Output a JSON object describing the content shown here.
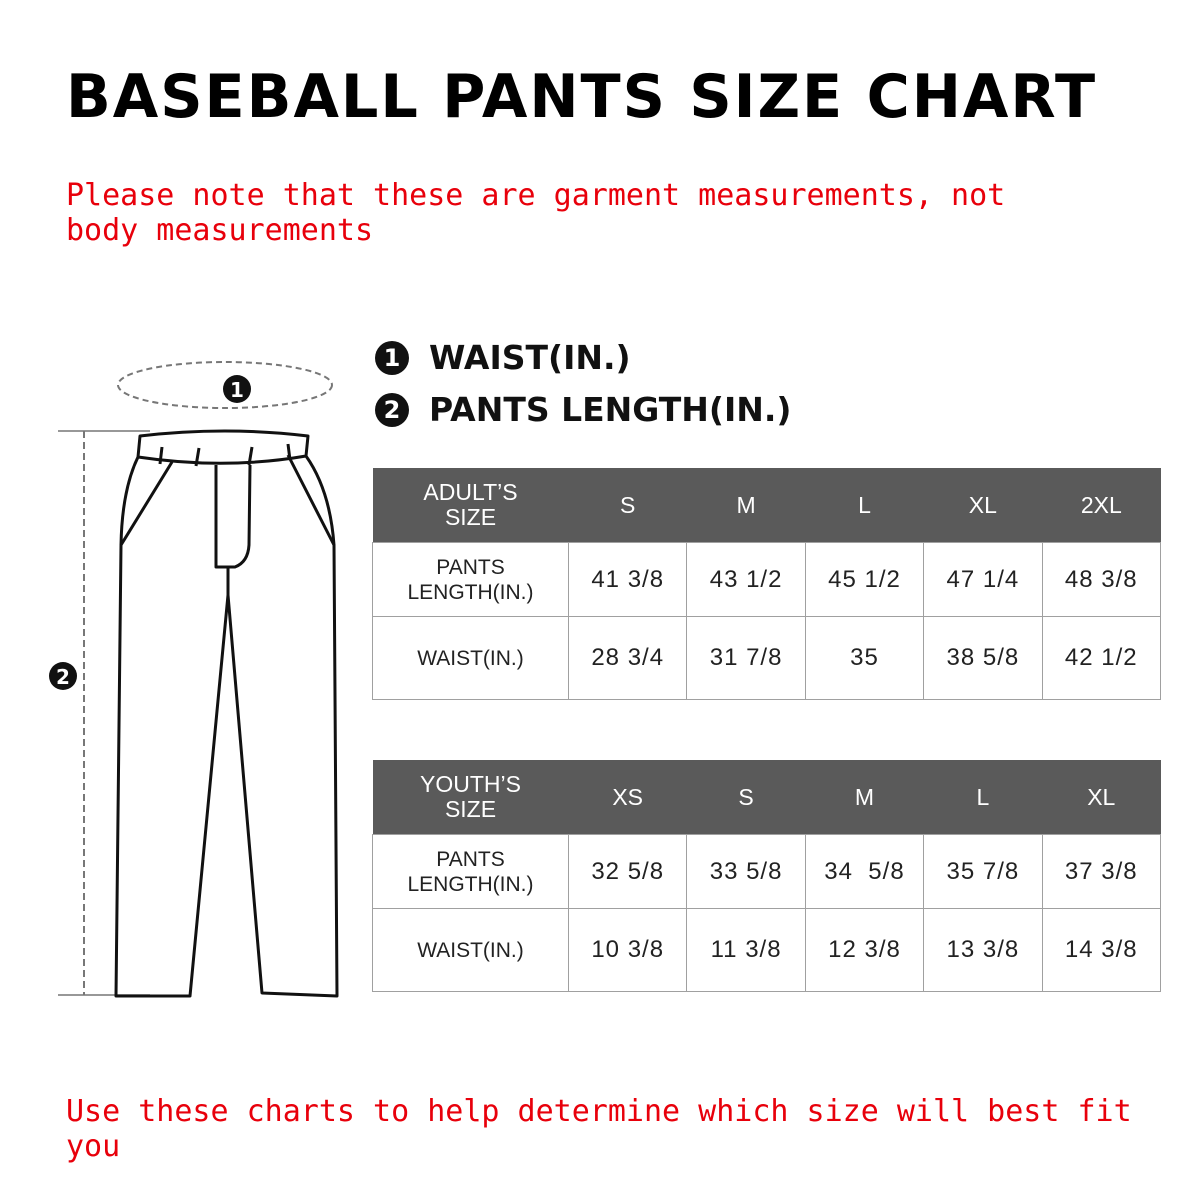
{
  "title": "BASEBALL PANTS SIZE CHART",
  "note": "Please note that these are garment measurements, not body measurements",
  "footer": "Use these charts to help determine which size will best fit you",
  "legend": [
    {
      "num": "1",
      "label": "WAIST(IN.)"
    },
    {
      "num": "2",
      "label": "PANTS LENGTH(IN.)"
    }
  ],
  "diagram": {
    "marker1": "1",
    "marker2": "2"
  },
  "adult": {
    "header": [
      "ADULT’S SIZE",
      "S",
      "M",
      "L",
      "XL",
      "2XL"
    ],
    "rows": [
      {
        "label": "PANTS LENGTH(IN.)",
        "values": [
          "41 3/8",
          "43 1/2",
          "45 1/2",
          "47 1/4",
          "48 3/8"
        ]
      },
      {
        "label": "WAIST(IN.)",
        "values": [
          "28 3/4",
          "31 7/8",
          "35",
          "38 5/8",
          "42 1/2"
        ]
      }
    ]
  },
  "youth": {
    "header": [
      "YOUTH’S SIZE",
      "XS",
      "S",
      "M",
      "L",
      "XL"
    ],
    "rows": [
      {
        "label": "PANTS LENGTH(IN.)",
        "values": [
          "32 5/8",
          "33 5/8",
          "34  5/8",
          "35 7/8",
          "37 3/8"
        ]
      },
      {
        "label": "WAIST(IN.)",
        "values": [
          "10 3/8",
          "11 3/8",
          "12 3/8",
          "13 3/8",
          "14 3/8"
        ]
      }
    ]
  },
  "colors": {
    "accent": "#e8000b",
    "header_bg": "#5a5a5a"
  }
}
